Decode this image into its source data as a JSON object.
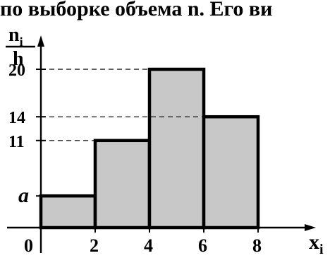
{
  "header_text": "по выборке объема n. Его ви",
  "chart_data": {
    "type": "bar",
    "title": "",
    "ylabel_top": "n",
    "ylabel_top_sub": "i",
    "ylabel_bottom": "h",
    "xlabel": "x",
    "xlabel_sub": "i",
    "origin_label": "0",
    "bins": [
      {
        "x0": 0,
        "x1": 2,
        "value_label": "a",
        "value": 4
      },
      {
        "x0": 2,
        "x1": 4,
        "value_label": "11",
        "value": 11
      },
      {
        "x0": 4,
        "x1": 6,
        "value_label": "20",
        "value": 20
      },
      {
        "x0": 6,
        "x1": 8,
        "value_label": "14",
        "value": 14
      }
    ],
    "x_ticks": [
      2,
      4,
      6,
      8
    ],
    "y_tick_labels": [
      "a",
      "11",
      "14",
      "20"
    ],
    "xlim": [
      0,
      8
    ],
    "ylim": [
      0,
      20
    ],
    "grid": false
  }
}
